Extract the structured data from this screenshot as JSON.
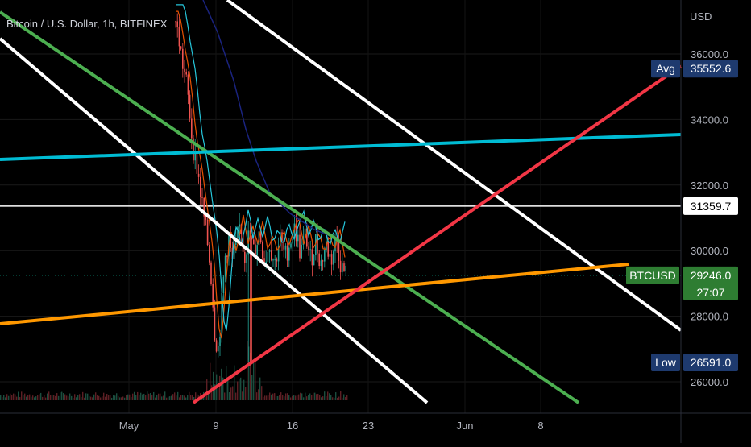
{
  "title": "Bitcoin / U.S. Dollar, 1h, BITFINEX",
  "currency": "USD",
  "chart_data": {
    "type": "line",
    "symbol": "BTCUSD",
    "exchange": "BITFINEX",
    "interval": "1h",
    "x_ticks": [
      "May",
      "9",
      "16",
      "23",
      "Jun",
      "8"
    ],
    "y_ticks": [
      "36000.0",
      "34000.0",
      "32000.0",
      "30000.0",
      "28000.0",
      "26000.0"
    ],
    "ylim": [
      25000,
      37300
    ],
    "price_path": [
      [
        0.0,
        37000
      ],
      [
        0.02,
        36400
      ],
      [
        0.04,
        35700
      ],
      [
        0.06,
        35200
      ],
      [
        0.08,
        34300
      ],
      [
        0.1,
        33200
      ],
      [
        0.13,
        32400
      ],
      [
        0.16,
        31200
      ],
      [
        0.19,
        30100
      ],
      [
        0.21,
        29100
      ],
      [
        0.23,
        27400
      ],
      [
        0.25,
        27000
      ],
      [
        0.27,
        28400
      ],
      [
        0.29,
        29800
      ],
      [
        0.31,
        30400
      ],
      [
        0.33,
        29600
      ],
      [
        0.36,
        30300
      ],
      [
        0.38,
        30900
      ],
      [
        0.4,
        29800
      ],
      [
        0.43,
        30500
      ],
      [
        0.46,
        29900
      ],
      [
        0.49,
        30600
      ],
      [
        0.52,
        29700
      ],
      [
        0.55,
        30200
      ],
      [
        0.58,
        29600
      ],
      [
        0.61,
        30400
      ],
      [
        0.64,
        29800
      ],
      [
        0.67,
        30300
      ],
      [
        0.7,
        30700
      ],
      [
        0.73,
        29900
      ],
      [
        0.76,
        30500
      ],
      [
        0.79,
        29700
      ],
      [
        0.82,
        30300
      ],
      [
        0.85,
        29600
      ],
      [
        0.88,
        30200
      ],
      [
        0.91,
        29700
      ],
      [
        0.94,
        30400
      ],
      [
        0.97,
        29500
      ],
      [
        1.0,
        29246
      ]
    ],
    "price_range": [
      0.0,
      1.0
    ],
    "levels": [
      {
        "label": "Avg",
        "value": "35552.6",
        "price": 35552.6,
        "color": "#1e3a6e"
      },
      {
        "label": "",
        "value": "31359.7",
        "price": 31359.7,
        "color": "#ffffff"
      },
      {
        "label": "BTCUSD",
        "value": "29246.0",
        "sub": "27:07",
        "price": 29246.0,
        "color": "#2e7d32"
      },
      {
        "label": "Low",
        "value": "26591.0",
        "price": 26591.0,
        "color": "#1e3a6e"
      }
    ],
    "colors": {
      "background": "#000000",
      "white_channel": "#ffffff",
      "green_trend": "#4caf50",
      "cyan_line": "#00bcd4",
      "orange_line": "#ff9800",
      "red_line": "#f23645",
      "last_price": "#089981"
    }
  }
}
